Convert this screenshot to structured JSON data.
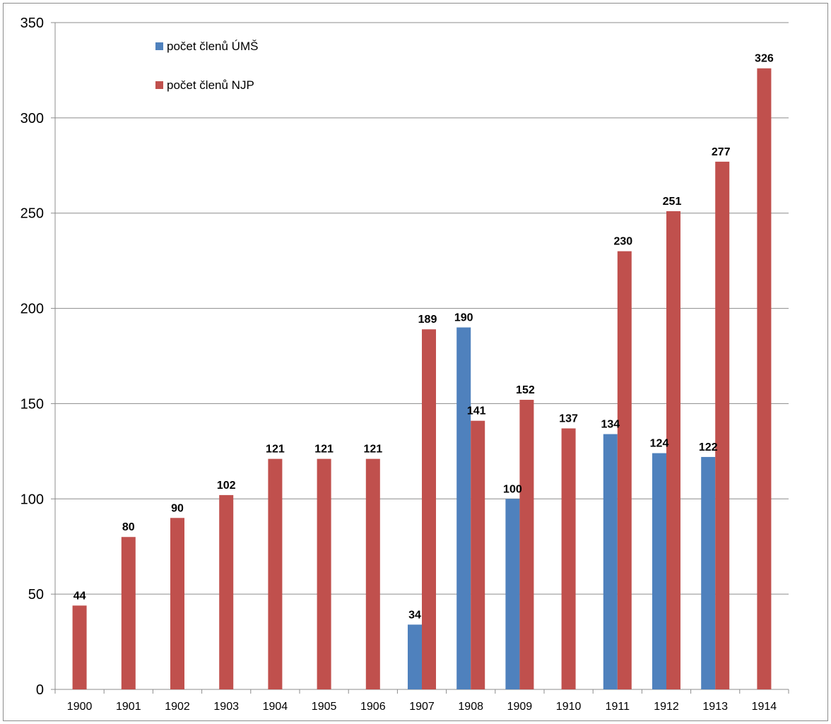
{
  "chart_data": {
    "type": "bar",
    "categories": [
      "1900",
      "1901",
      "1902",
      "1903",
      "1904",
      "1905",
      "1906",
      "1907",
      "1908",
      "1909",
      "1910",
      "1911",
      "1912",
      "1913",
      "1914"
    ],
    "series": [
      {
        "name": "počet členů ÚMŠ",
        "color": "#4f81bd",
        "values": [
          null,
          null,
          null,
          null,
          null,
          null,
          null,
          34,
          190,
          100,
          null,
          134,
          124,
          122,
          null
        ]
      },
      {
        "name": "počet členů NJP",
        "color": "#c0504d",
        "values": [
          44,
          80,
          90,
          102,
          121,
          121,
          121,
          189,
          141,
          152,
          137,
          230,
          251,
          277,
          326
        ]
      }
    ],
    "ylim": [
      0,
      350
    ],
    "yticks": [
      0,
      50,
      100,
      150,
      200,
      250,
      300,
      350
    ],
    "grid": true,
    "legend": "top-left",
    "title": "",
    "xlabel": "",
    "ylabel": ""
  }
}
